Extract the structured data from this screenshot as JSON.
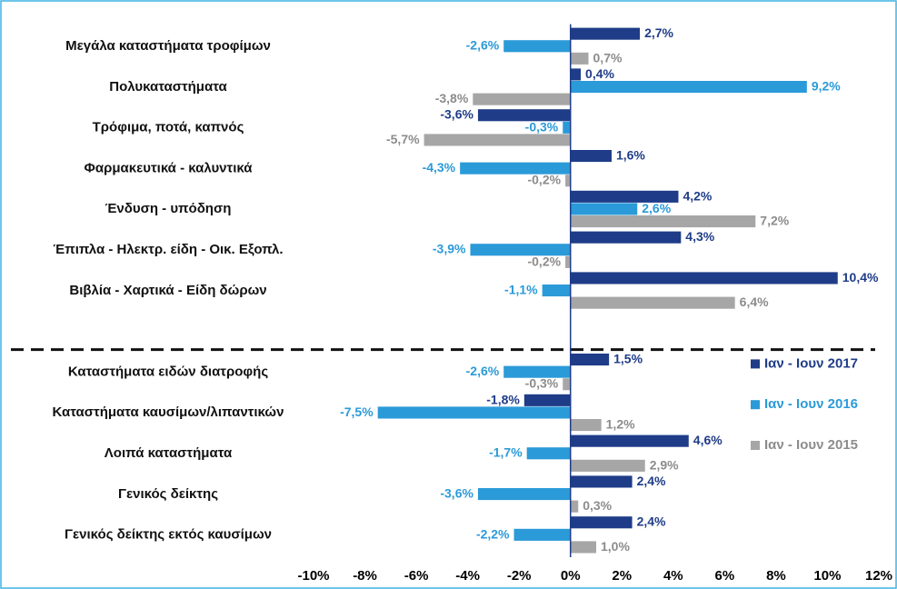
{
  "chart_data": {
    "type": "hbar",
    "categories": [
      "Μεγάλα καταστήματα τροφίμων",
      "Πολυκαταστήματα",
      "Τρόφιμα, ποτά, καπνός",
      "Φαρμακευτικά - καλυντικά",
      "Ένδυση - υπόδηση",
      "Έπιπλα - Ηλεκτρ. είδη - Οικ. Εξοπλ.",
      "Βιβλία - Χαρτικά - Είδη δώρων",
      null,
      "Καταστήματα ειδών διατροφής",
      "Καταστήματα καυσίμων/λιπαντικών",
      "Λοιπά καταστήματα",
      "Γενικός δείκτης",
      "Γενικός δείκτης εκτός καυσίμων"
    ],
    "series": [
      {
        "name": "Ιαν - Ιουν 2017",
        "color": "#1f3c88",
        "values": [
          2.7,
          0.4,
          -3.6,
          1.6,
          4.2,
          4.3,
          10.4,
          null,
          1.5,
          -1.8,
          4.6,
          2.4,
          2.4
        ],
        "value_labels": [
          "2,7%",
          "0,4%",
          "-3,6%",
          "1,6%",
          "4,2%",
          "4,3%",
          "10,4%",
          null,
          "1,5%",
          "-1,8%",
          "4,6%",
          "2,4%",
          "2,4%"
        ]
      },
      {
        "name": "Ιαν - Ιουν 2016",
        "color": "#2b9ad8",
        "values": [
          -2.6,
          9.2,
          -0.3,
          -4.3,
          2.6,
          -3.9,
          -1.1,
          null,
          -2.6,
          -7.5,
          -1.7,
          -3.6,
          -2.2
        ],
        "value_labels": [
          "-2,6%",
          "9,2%",
          "-0,3%",
          "-4,3%",
          "2,6%",
          "-3,9%",
          "-1,1%",
          null,
          "-2,6%",
          "-7,5%",
          "-1,7%",
          "-3,6%",
          "-2,2%"
        ]
      },
      {
        "name": "Ιαν - Ιουν 2015",
        "color": "#a6a6a6",
        "values": [
          0.7,
          -3.8,
          -5.7,
          -0.2,
          7.2,
          -0.2,
          6.4,
          null,
          -0.3,
          1.2,
          2.9,
          0.3,
          1.0
        ],
        "value_labels": [
          "0,7%",
          "-3,8%",
          "-5,7%",
          "-0,2%",
          "7,2%",
          "-0,2%",
          "6,4%",
          null,
          "-0,3%",
          "1,2%",
          "2,9%",
          "0,3%",
          "1,0%"
        ]
      }
    ],
    "xlim": [
      -10,
      12
    ],
    "xticks": [
      {
        "value": -10,
        "label": "-10%"
      },
      {
        "value": -8,
        "label": "-8%"
      },
      {
        "value": -6,
        "label": "-6%"
      },
      {
        "value": -4,
        "label": "-4%"
      },
      {
        "value": -2,
        "label": "-2%"
      },
      {
        "value": 0,
        "label": "0%"
      },
      {
        "value": 2,
        "label": "2%"
      },
      {
        "value": 4,
        "label": "4%"
      },
      {
        "value": 6,
        "label": "6%"
      },
      {
        "value": 8,
        "label": "8%"
      },
      {
        "value": 10,
        "label": "10%"
      },
      {
        "value": 12,
        "label": "12%"
      }
    ],
    "legend": "right"
  }
}
